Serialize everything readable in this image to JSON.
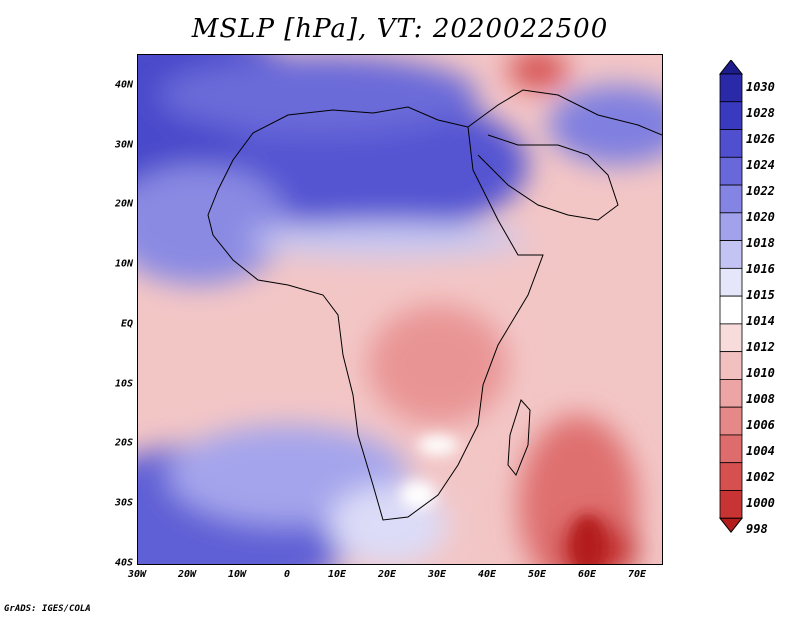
{
  "title": "MSLP [hPa], VT: 2020022500",
  "credit": "GrADS: IGES/COLA",
  "map": {
    "region": "Africa",
    "lon_range": [
      -30,
      75
    ],
    "lat_range": [
      -40,
      45
    ],
    "y_ticks": [
      {
        "label": "40N",
        "lat": 40
      },
      {
        "label": "30N",
        "lat": 30
      },
      {
        "label": "20N",
        "lat": 20
      },
      {
        "label": "10N",
        "lat": 10
      },
      {
        "label": "EQ",
        "lat": 0
      },
      {
        "label": "10S",
        "lat": -10
      },
      {
        "label": "20S",
        "lat": -20
      },
      {
        "label": "30S",
        "lat": -30
      },
      {
        "label": "40S",
        "lat": -40
      }
    ],
    "x_ticks": [
      {
        "label": "30W",
        "lon": -30
      },
      {
        "label": "20W",
        "lon": -20
      },
      {
        "label": "10W",
        "lon": -10
      },
      {
        "label": "0",
        "lon": 0
      },
      {
        "label": "10E",
        "lon": 10
      },
      {
        "label": "20E",
        "lon": 20
      },
      {
        "label": "30E",
        "lon": 30
      },
      {
        "label": "40E",
        "lon": 40
      },
      {
        "label": "50E",
        "lon": 50
      },
      {
        "label": "60E",
        "lon": 60
      },
      {
        "label": "70E",
        "lon": 70
      }
    ]
  },
  "colorbar": {
    "levels": [
      "1030",
      "1028",
      "1026",
      "1024",
      "1022",
      "1020",
      "1018",
      "1016",
      "1015",
      "1014",
      "1012",
      "1010",
      "1008",
      "1006",
      "1004",
      "1002",
      "1000",
      "998"
    ],
    "colors": [
      "#1c1c8c",
      "#2a2aa8",
      "#3a3ac0",
      "#4f4fcf",
      "#6868da",
      "#8484e4",
      "#a2a2ec",
      "#c4c4f4",
      "#e6e6fb",
      "#ffffff",
      "#f8dcdc",
      "#f3c0c0",
      "#eda4a4",
      "#e78888",
      "#df6c6c",
      "#d65050",
      "#c83434",
      "#b41c1c"
    ]
  }
}
